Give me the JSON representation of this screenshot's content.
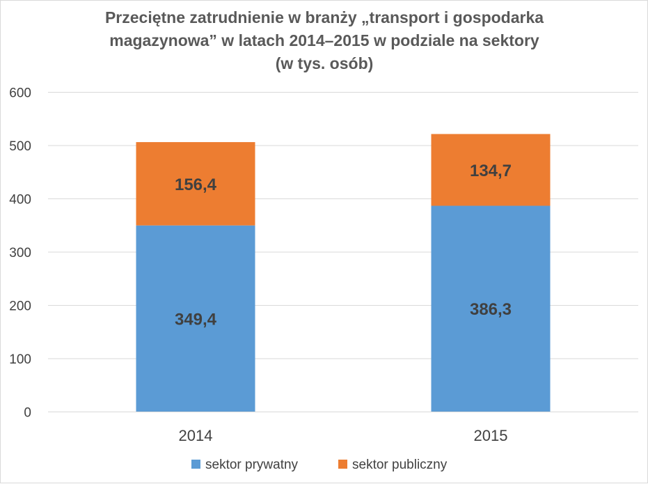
{
  "chart_data": {
    "type": "bar",
    "stacked": true,
    "title_lines": [
      "Przeciętne zatrudnienie w branży „transport i gospodarka",
      "magazynowa” w latach 2014–2015 w podziale na sektory",
      "(w tys. osób)"
    ],
    "categories": [
      "2014",
      "2015"
    ],
    "series": [
      {
        "name": "sektor prywatny",
        "values": [
          349.4,
          386.3
        ],
        "labels": [
          "349,4",
          "386,3"
        ],
        "color": "#5b9bd5"
      },
      {
        "name": "sektor publiczny",
        "values": [
          156.4,
          134.7
        ],
        "labels": [
          "156,4",
          "134,7"
        ],
        "color": "#ed7d31"
      }
    ],
    "xlabel": "",
    "ylabel": "",
    "ylim": [
      0,
      600
    ],
    "yticks": [
      0,
      100,
      200,
      300,
      400,
      500,
      600
    ],
    "grid": true,
    "legend_position": "bottom"
  }
}
